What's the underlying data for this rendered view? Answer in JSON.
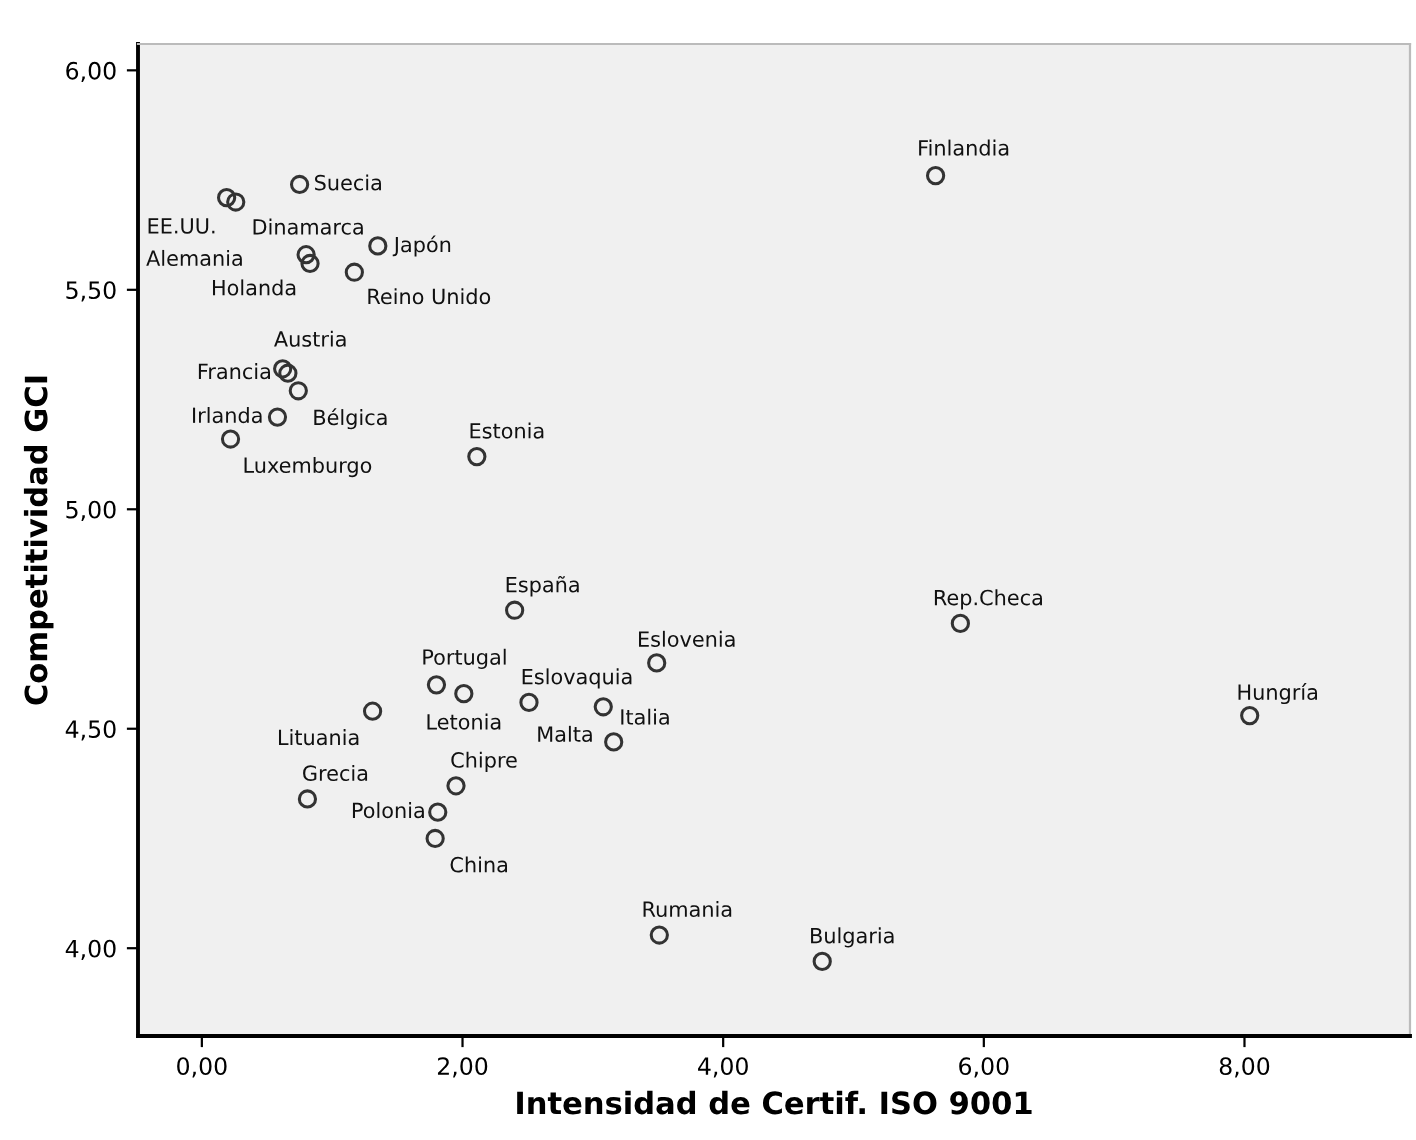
{
  "chart_data": {
    "type": "scatter",
    "xlabel": "Intensidad de Certif. ISO 9001",
    "ylabel": "Competitividad GCI",
    "xlim": [
      -0.49,
      9.27
    ],
    "ylim": [
      3.8,
      6.06
    ],
    "xticks": [
      {
        "value": 0,
        "label": "0,00"
      },
      {
        "value": 2,
        "label": "2,00"
      },
      {
        "value": 4,
        "label": "4,00"
      },
      {
        "value": 6,
        "label": "6,00"
      },
      {
        "value": 8,
        "label": "8,00"
      }
    ],
    "yticks": [
      {
        "value": 4,
        "label": "4,00"
      },
      {
        "value": 4.5,
        "label": "4,50"
      },
      {
        "value": 5,
        "label": "5,00"
      },
      {
        "value": 5.5,
        "label": "5,50"
      },
      {
        "value": 6,
        "label": "6,00"
      }
    ],
    "grid": false,
    "marker": "circle",
    "series": [
      {
        "color": "#333333",
        "x": [
          0.75,
          0.19,
          0.26,
          0.8,
          0.83,
          1.35,
          1.17,
          0.62,
          0.66,
          0.74,
          0.58,
          0.22,
          2.11,
          2.4,
          3.49,
          1.8,
          2.01,
          2.51,
          3.08,
          3.16,
          1.31,
          1.95,
          0.81,
          1.81,
          1.79,
          3.51,
          4.76,
          5.63,
          5.82,
          8.04
        ],
        "values": [
          5.74,
          5.71,
          5.7,
          5.58,
          5.56,
          5.6,
          5.54,
          5.32,
          5.31,
          5.27,
          5.21,
          5.16,
          5.12,
          4.77,
          4.65,
          4.6,
          4.58,
          4.56,
          4.55,
          4.47,
          4.54,
          4.37,
          4.34,
          4.31,
          4.25,
          4.03,
          3.97,
          5.76,
          4.74,
          4.53
        ]
      }
    ],
    "annotations": [
      {
        "text": "Suecia",
        "x": 0.75,
        "y": 5.74
      },
      {
        "text": "EE.UU.",
        "x": 0.19,
        "y": 5.71
      },
      {
        "text": "Alemania",
        "x": 0.26,
        "y": 5.7
      },
      {
        "text": "Dinamarca",
        "x": 0.8,
        "y": 5.58
      },
      {
        "text": "Holanda",
        "x": 0.83,
        "y": 5.56
      },
      {
        "text": "Japón",
        "x": 1.35,
        "y": 5.6
      },
      {
        "text": "Reino Unido",
        "x": 1.17,
        "y": 5.54
      },
      {
        "text": "Austria",
        "x": 0.62,
        "y": 5.32
      },
      {
        "text": "Francia",
        "x": 0.66,
        "y": 5.31
      },
      {
        "text": "Bélgica",
        "x": 0.74,
        "y": 5.27
      },
      {
        "text": "Irlanda",
        "x": 0.58,
        "y": 5.21
      },
      {
        "text": "Luxemburgo",
        "x": 0.22,
        "y": 5.16
      },
      {
        "text": "Estonia",
        "x": 2.11,
        "y": 5.12
      },
      {
        "text": "España",
        "x": 2.4,
        "y": 4.77
      },
      {
        "text": "Eslovenia",
        "x": 3.49,
        "y": 4.65
      },
      {
        "text": "Portugal",
        "x": 1.8,
        "y": 4.6
      },
      {
        "text": "Letonia",
        "x": 2.01,
        "y": 4.58
      },
      {
        "text": "Eslovaquia",
        "x": 2.51,
        "y": 4.56
      },
      {
        "text": "Italia",
        "x": 3.08,
        "y": 4.55
      },
      {
        "text": "Malta",
        "x": 3.16,
        "y": 4.47
      },
      {
        "text": "Lituania",
        "x": 1.31,
        "y": 4.54
      },
      {
        "text": "Chipre",
        "x": 1.95,
        "y": 4.37
      },
      {
        "text": "Grecia",
        "x": 0.81,
        "y": 4.34
      },
      {
        "text": "Polonia",
        "x": 1.81,
        "y": 4.31
      },
      {
        "text": "China",
        "x": 1.79,
        "y": 4.25
      },
      {
        "text": "Rumania",
        "x": 3.51,
        "y": 4.03
      },
      {
        "text": "Bulgaria",
        "x": 4.76,
        "y": 3.97
      },
      {
        "text": "Finlandia",
        "x": 5.63,
        "y": 5.76
      },
      {
        "text": "Rep.Checa",
        "x": 5.82,
        "y": 4.74
      },
      {
        "text": "Hungría",
        "x": 8.04,
        "y": 4.53
      }
    ]
  }
}
